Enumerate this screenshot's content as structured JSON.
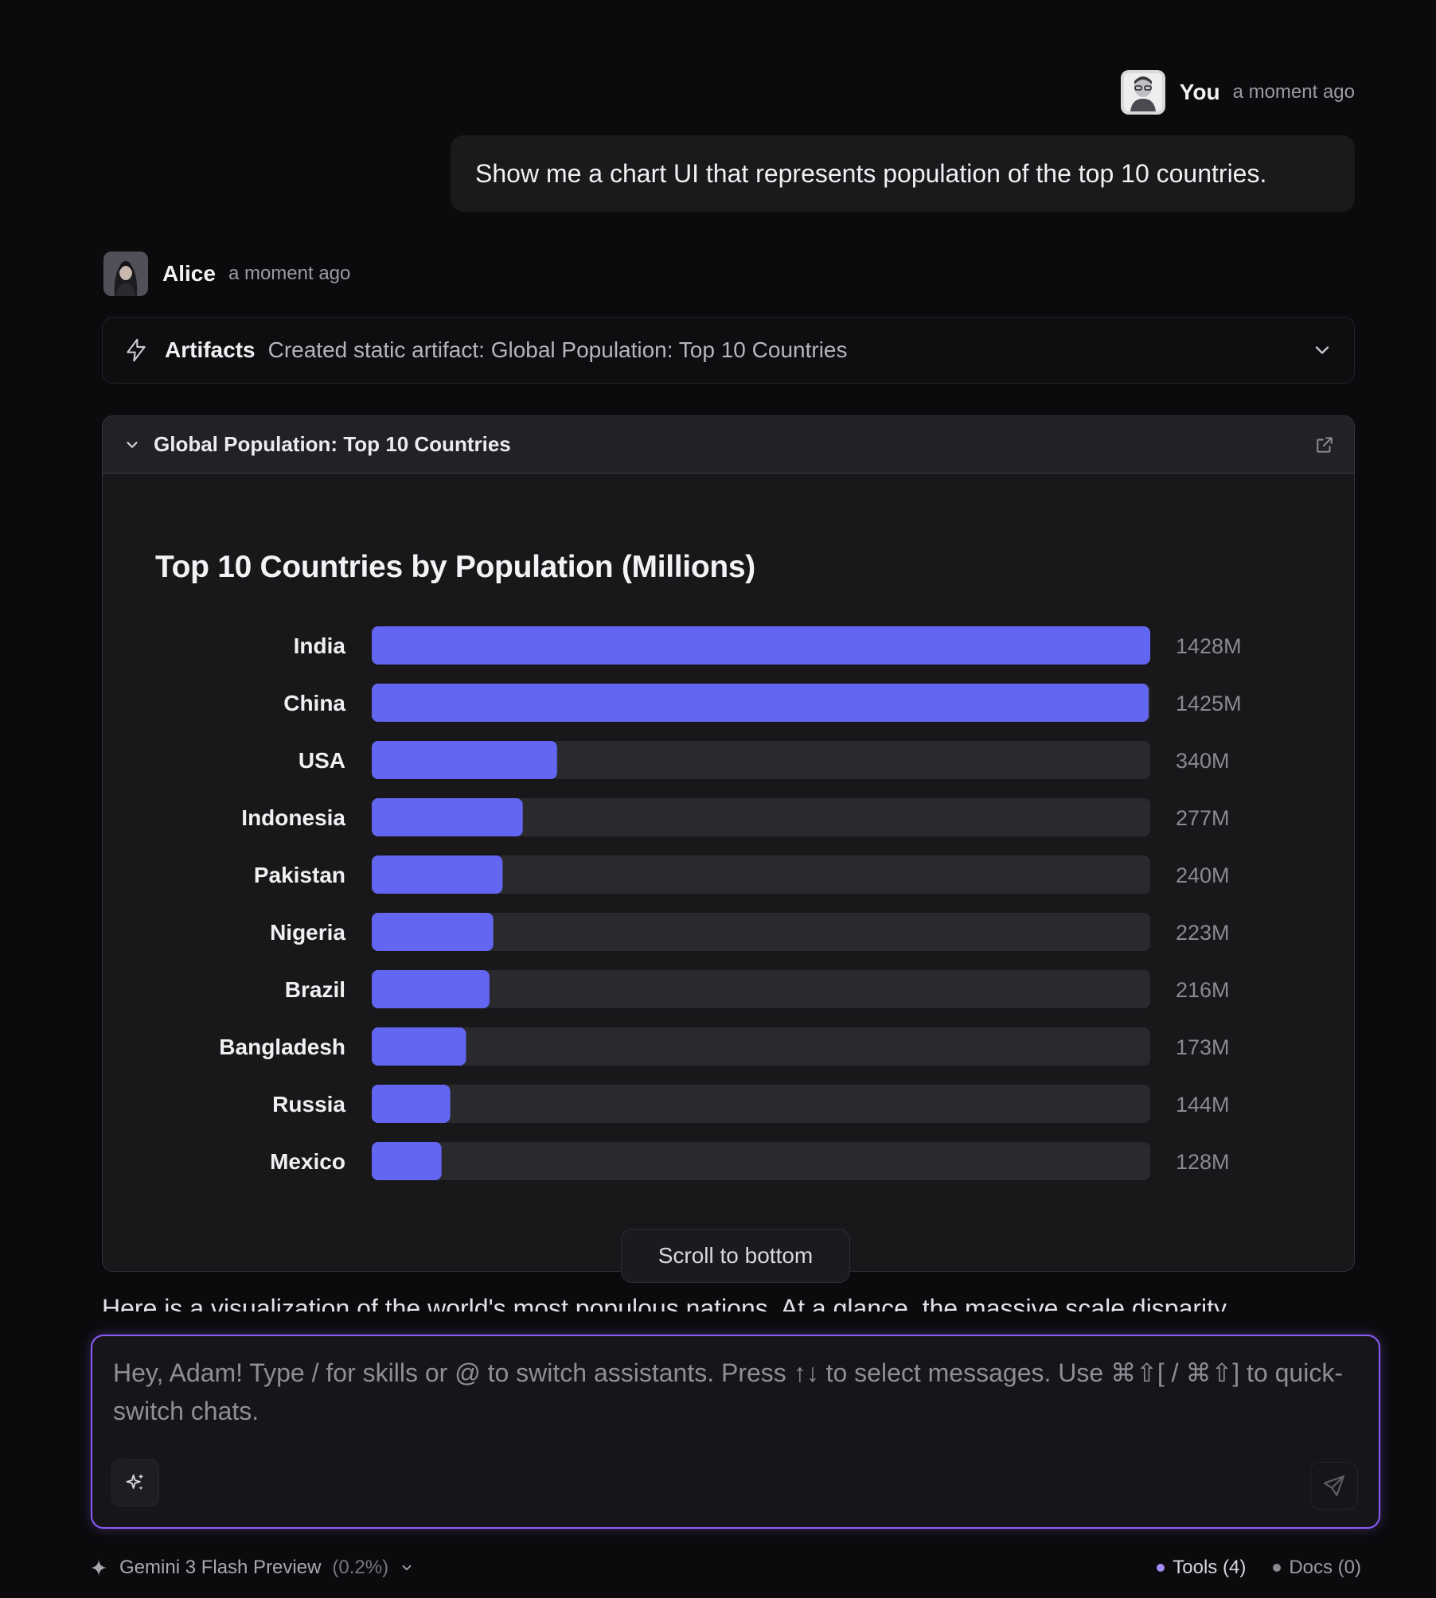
{
  "user_message": {
    "author": "You",
    "time": "a moment ago",
    "text": "Show me a chart UI that represents population of the top 10 countries."
  },
  "assistant_message": {
    "author": "Alice",
    "time": "a moment ago",
    "artifacts": {
      "label": "Artifacts",
      "description": "Created static artifact: Global Population: Top 10 Countries"
    },
    "panel_title": "Global Population: Top 10 Countries",
    "partial_text": "Here is a visualization of the world's most populous nations. At a glance, the massive scale disparity"
  },
  "scroll_button": "Scroll to bottom",
  "composer": {
    "placeholder": "Hey, Adam! Type / for skills or @ to switch assistants. Press ↑↓ to select messages. Use ⌘⇧[ / ⌘⇧] to quick-switch chats."
  },
  "footer": {
    "model": "Gemini 3 Flash Preview",
    "model_pct": "(0.2%)",
    "tools": "Tools (4)",
    "docs": "Docs (0)"
  },
  "colors": {
    "bar": "#6366f1",
    "track": "#2a2a2e",
    "accent": "#8b5cf6",
    "tools_dot": "#a78bfa",
    "docs_dot": "#8a8a92"
  },
  "chart_data": {
    "type": "bar",
    "orientation": "horizontal",
    "title": "Top 10 Countries by Population (Millions)",
    "categories": [
      "India",
      "China",
      "USA",
      "Indonesia",
      "Pakistan",
      "Nigeria",
      "Brazil",
      "Bangladesh",
      "Russia",
      "Mexico"
    ],
    "values": [
      1428,
      1425,
      340,
      277,
      240,
      223,
      216,
      173,
      144,
      128
    ],
    "value_labels": [
      "1428M",
      "1425M",
      "340M",
      "277M",
      "240M",
      "223M",
      "216M",
      "173M",
      "144M",
      "128M"
    ],
    "xlim": [
      0,
      1428
    ],
    "unit": "M"
  }
}
